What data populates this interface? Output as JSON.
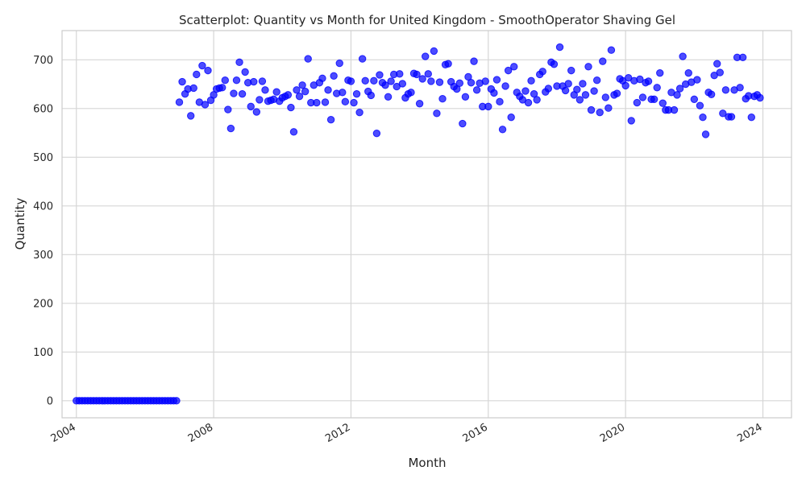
{
  "chart_data": {
    "type": "scatter",
    "title": "Scatterplot: Quantity vs Month for United Kingdom - SmoothOperator Shaving Gel",
    "xlabel": "Month",
    "ylabel": "Quantity",
    "x_ticks": [
      "2004",
      "2008",
      "2012",
      "2016",
      "2020",
      "2024"
    ],
    "y_ticks": [
      "0",
      "100",
      "200",
      "300",
      "400",
      "500",
      "600",
      "700"
    ],
    "xlim": [
      "2003-08",
      "2024-11"
    ],
    "ylim": [
      -35,
      760
    ],
    "grid": true,
    "legend": "none",
    "color": "#0000ff",
    "series": [
      {
        "points": [
          [
            "2004-01",
            0
          ],
          [
            "2004-02",
            0
          ],
          [
            "2004-03",
            0
          ],
          [
            "2004-04",
            0
          ],
          [
            "2004-05",
            0
          ],
          [
            "2004-06",
            0
          ],
          [
            "2004-07",
            0
          ],
          [
            "2004-08",
            0
          ],
          [
            "2004-09",
            0
          ],
          [
            "2004-10",
            0
          ],
          [
            "2004-11",
            0
          ],
          [
            "2004-12",
            0
          ],
          [
            "2005-01",
            0
          ],
          [
            "2005-02",
            0
          ],
          [
            "2005-03",
            0
          ],
          [
            "2005-04",
            0
          ],
          [
            "2005-05",
            0
          ],
          [
            "2005-06",
            0
          ],
          [
            "2005-07",
            0
          ],
          [
            "2005-08",
            0
          ],
          [
            "2005-09",
            0
          ],
          [
            "2005-10",
            0
          ],
          [
            "2005-11",
            0
          ],
          [
            "2005-12",
            0
          ],
          [
            "2006-01",
            0
          ],
          [
            "2006-02",
            0
          ],
          [
            "2006-03",
            0
          ],
          [
            "2006-04",
            0
          ],
          [
            "2006-05",
            0
          ],
          [
            "2006-06",
            0
          ],
          [
            "2006-07",
            0
          ],
          [
            "2006-08",
            0
          ],
          [
            "2006-09",
            0
          ],
          [
            "2006-10",
            0
          ],
          [
            "2006-11",
            0
          ],
          [
            "2006-12",
            0
          ],
          [
            "2007-01",
            613
          ],
          [
            "2007-02",
            655
          ],
          [
            "2007-03",
            630
          ],
          [
            "2007-04",
            640
          ],
          [
            "2007-05",
            585
          ],
          [
            "2007-06",
            642
          ],
          [
            "2007-07",
            670
          ],
          [
            "2007-08",
            613
          ],
          [
            "2007-09",
            688
          ],
          [
            "2007-10",
            608
          ],
          [
            "2007-11",
            678
          ],
          [
            "2007-12",
            617
          ],
          [
            "2008-01",
            628
          ],
          [
            "2008-02",
            640
          ],
          [
            "2008-03",
            642
          ],
          [
            "2008-04",
            643
          ],
          [
            "2008-05",
            658
          ],
          [
            "2008-06",
            598
          ],
          [
            "2008-07",
            559
          ],
          [
            "2008-08",
            631
          ],
          [
            "2008-09",
            658
          ],
          [
            "2008-10",
            695
          ],
          [
            "2008-11",
            630
          ],
          [
            "2008-12",
            675
          ],
          [
            "2009-01",
            653
          ],
          [
            "2009-02",
            604
          ],
          [
            "2009-03",
            655
          ],
          [
            "2009-04",
            593
          ],
          [
            "2009-05",
            618
          ],
          [
            "2009-06",
            656
          ],
          [
            "2009-07",
            638
          ],
          [
            "2009-08",
            615
          ],
          [
            "2009-09",
            617
          ],
          [
            "2009-10",
            619
          ],
          [
            "2009-11",
            634
          ],
          [
            "2009-12",
            615
          ],
          [
            "2010-01",
            622
          ],
          [
            "2010-02",
            625
          ],
          [
            "2010-03",
            628
          ],
          [
            "2010-04",
            602
          ],
          [
            "2010-05",
            552
          ],
          [
            "2010-06",
            638
          ],
          [
            "2010-07",
            625
          ],
          [
            "2010-08",
            648
          ],
          [
            "2010-09",
            635
          ],
          [
            "2010-10",
            702
          ],
          [
            "2010-11",
            612
          ],
          [
            "2010-12",
            648
          ],
          [
            "2011-01",
            612
          ],
          [
            "2011-02",
            653
          ],
          [
            "2011-03",
            662
          ],
          [
            "2011-04",
            613
          ],
          [
            "2011-05",
            638
          ],
          [
            "2011-06",
            577
          ],
          [
            "2011-07",
            667
          ],
          [
            "2011-08",
            631
          ],
          [
            "2011-09",
            693
          ],
          [
            "2011-10",
            633
          ],
          [
            "2011-11",
            614
          ],
          [
            "2011-12",
            658
          ],
          [
            "2012-01",
            656
          ],
          [
            "2012-02",
            612
          ],
          [
            "2012-03",
            630
          ],
          [
            "2012-04",
            592
          ],
          [
            "2012-05",
            702
          ],
          [
            "2012-06",
            657
          ],
          [
            "2012-07",
            635
          ],
          [
            "2012-08",
            627
          ],
          [
            "2012-09",
            657
          ],
          [
            "2012-10",
            549
          ],
          [
            "2012-11",
            669
          ],
          [
            "2012-12",
            653
          ],
          [
            "2013-01",
            648
          ],
          [
            "2013-02",
            624
          ],
          [
            "2013-03",
            656
          ],
          [
            "2013-04",
            670
          ],
          [
            "2013-05",
            645
          ],
          [
            "2013-06",
            671
          ],
          [
            "2013-07",
            651
          ],
          [
            "2013-08",
            622
          ],
          [
            "2013-09",
            630
          ],
          [
            "2013-10",
            633
          ],
          [
            "2013-11",
            672
          ],
          [
            "2013-12",
            670
          ],
          [
            "2014-01",
            610
          ],
          [
            "2014-02",
            661
          ],
          [
            "2014-03",
            707
          ],
          [
            "2014-04",
            671
          ],
          [
            "2014-05",
            656
          ],
          [
            "2014-06",
            718
          ],
          [
            "2014-07",
            590
          ],
          [
            "2014-08",
            654
          ],
          [
            "2014-09",
            620
          ],
          [
            "2014-10",
            690
          ],
          [
            "2014-11",
            692
          ],
          [
            "2014-12",
            655
          ],
          [
            "2015-01",
            645
          ],
          [
            "2015-02",
            640
          ],
          [
            "2015-03",
            652
          ],
          [
            "2015-04",
            569
          ],
          [
            "2015-05",
            624
          ],
          [
            "2015-06",
            665
          ],
          [
            "2015-07",
            653
          ],
          [
            "2015-08",
            697
          ],
          [
            "2015-09",
            638
          ],
          [
            "2015-10",
            652
          ],
          [
            "2015-11",
            604
          ],
          [
            "2015-12",
            656
          ],
          [
            "2016-01",
            604
          ],
          [
            "2016-02",
            640
          ],
          [
            "2016-03",
            632
          ],
          [
            "2016-04",
            659
          ],
          [
            "2016-05",
            614
          ],
          [
            "2016-06",
            557
          ],
          [
            "2016-07",
            646
          ],
          [
            "2016-08",
            678
          ],
          [
            "2016-09",
            582
          ],
          [
            "2016-10",
            686
          ],
          [
            "2016-11",
            633
          ],
          [
            "2016-12",
            625
          ],
          [
            "2017-01",
            618
          ],
          [
            "2017-02",
            636
          ],
          [
            "2017-03",
            612
          ],
          [
            "2017-04",
            657
          ],
          [
            "2017-05",
            630
          ],
          [
            "2017-06",
            618
          ],
          [
            "2017-07",
            670
          ],
          [
            "2017-08",
            676
          ],
          [
            "2017-09",
            634
          ],
          [
            "2017-10",
            641
          ],
          [
            "2017-11",
            695
          ],
          [
            "2017-12",
            691
          ],
          [
            "2018-01",
            646
          ],
          [
            "2018-02",
            726
          ],
          [
            "2018-03",
            646
          ],
          [
            "2018-04",
            637
          ],
          [
            "2018-05",
            651
          ],
          [
            "2018-06",
            678
          ],
          [
            "2018-07",
            628
          ],
          [
            "2018-08",
            639
          ],
          [
            "2018-09",
            618
          ],
          [
            "2018-10",
            651
          ],
          [
            "2018-11",
            628
          ],
          [
            "2018-12",
            686
          ],
          [
            "2019-01",
            597
          ],
          [
            "2019-02",
            636
          ],
          [
            "2019-03",
            658
          ],
          [
            "2019-04",
            592
          ],
          [
            "2019-05",
            697
          ],
          [
            "2019-06",
            623
          ],
          [
            "2019-07",
            601
          ],
          [
            "2019-08",
            720
          ],
          [
            "2019-09",
            628
          ],
          [
            "2019-10",
            631
          ],
          [
            "2019-11",
            661
          ],
          [
            "2019-12",
            657
          ],
          [
            "2020-01",
            647
          ],
          [
            "2020-02",
            663
          ],
          [
            "2020-03",
            575
          ],
          [
            "2020-04",
            657
          ],
          [
            "2020-05",
            612
          ],
          [
            "2020-06",
            660
          ],
          [
            "2020-07",
            623
          ],
          [
            "2020-08",
            653
          ],
          [
            "2020-09",
            656
          ],
          [
            "2020-10",
            619
          ],
          [
            "2020-11",
            619
          ],
          [
            "2020-12",
            643
          ],
          [
            "2021-01",
            673
          ],
          [
            "2021-02",
            611
          ],
          [
            "2021-03",
            597
          ],
          [
            "2021-04",
            597
          ],
          [
            "2021-05",
            633
          ],
          [
            "2021-06",
            597
          ],
          [
            "2021-07",
            628
          ],
          [
            "2021-08",
            641
          ],
          [
            "2021-09",
            707
          ],
          [
            "2021-10",
            650
          ],
          [
            "2021-11",
            673
          ],
          [
            "2021-12",
            654
          ],
          [
            "2022-01",
            619
          ],
          [
            "2022-02",
            659
          ],
          [
            "2022-03",
            606
          ],
          [
            "2022-04",
            582
          ],
          [
            "2022-05",
            547
          ],
          [
            "2022-06",
            633
          ],
          [
            "2022-07",
            629
          ],
          [
            "2022-08",
            668
          ],
          [
            "2022-09",
            692
          ],
          [
            "2022-10",
            674
          ],
          [
            "2022-11",
            590
          ],
          [
            "2022-12",
            638
          ],
          [
            "2023-01",
            583
          ],
          [
            "2023-02",
            583
          ],
          [
            "2023-03",
            638
          ],
          [
            "2023-04",
            705
          ],
          [
            "2023-05",
            643
          ],
          [
            "2023-06",
            705
          ],
          [
            "2023-07",
            620
          ],
          [
            "2023-08",
            626
          ],
          [
            "2023-09",
            582
          ],
          [
            "2023-10",
            625
          ],
          [
            "2023-11",
            628
          ],
          [
            "2023-12",
            622
          ]
        ]
      }
    ]
  }
}
